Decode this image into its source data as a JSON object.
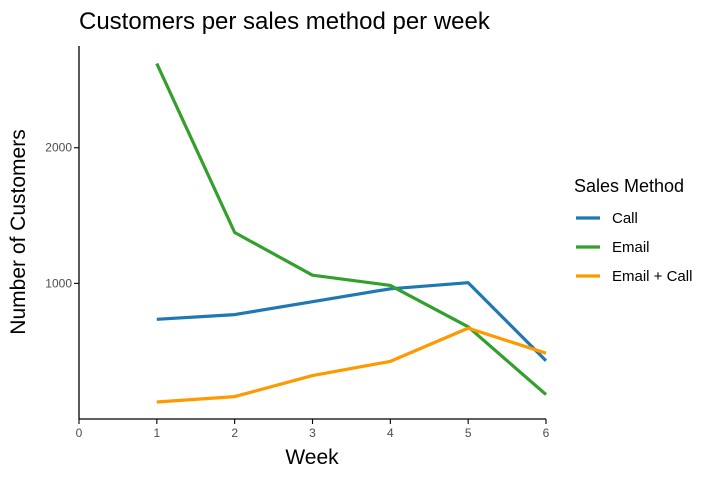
{
  "chart_data": {
    "type": "line",
    "title": "Customers per sales method per week",
    "xlabel": "Week",
    "ylabel": "Number of Customers",
    "xlim": [
      0,
      6
    ],
    "ylim": [
      0,
      2750
    ],
    "xticks": [
      0,
      1,
      2,
      3,
      4,
      5,
      6
    ],
    "yticks": [
      1000,
      2000
    ],
    "grid": false,
    "legend": {
      "title": "Sales Method",
      "position": "right"
    },
    "x": [
      1,
      2,
      3,
      4,
      5,
      6
    ],
    "series": [
      {
        "name": "Call",
        "color": "#1f78b4",
        "values": [
          735,
          770,
          865,
          960,
          1005,
          430
        ]
      },
      {
        "name": "Email",
        "color": "#33a02c",
        "values": [
          2620,
          1375,
          1060,
          985,
          680,
          180
        ]
      },
      {
        "name": "Email + Call",
        "color": "#ff9900",
        "values": [
          125,
          165,
          320,
          425,
          670,
          485
        ]
      }
    ]
  }
}
